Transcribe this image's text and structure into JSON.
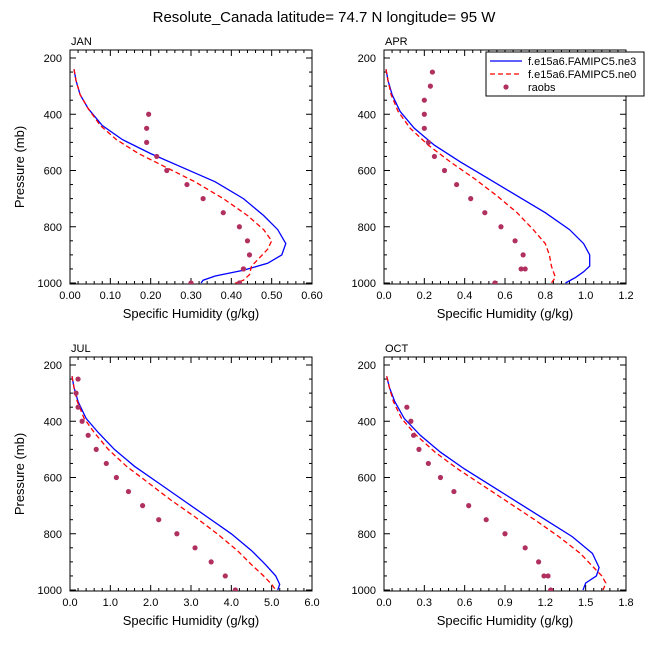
{
  "figure": {
    "title": "Resolute_Canada  latitude= 74.7 N longitude= 95 W"
  },
  "legend": {
    "placement": "top-right of APR panel",
    "entries": [
      {
        "label": "f.e15a6.FAMIPC5.ne3",
        "color": "#0000ff",
        "style": "solid"
      },
      {
        "label": "f.e15a6.FAMIPC5.ne0",
        "color": "#ff0000",
        "style": "dashed"
      },
      {
        "label": "raobs",
        "color": "#b03060",
        "style": "marker"
      }
    ]
  },
  "chart_data": [
    {
      "type": "line",
      "panel": "JAN",
      "title": "JAN",
      "xlabel": "Specific Humidity (g/kg)",
      "ylabel": "Pressure (mb)",
      "xlim": [
        0,
        0.6
      ],
      "ylim": [
        1000,
        200
      ],
      "xticks": [
        "0.00",
        "0.10",
        "0.20",
        "0.30",
        "0.40",
        "0.50",
        "0.60"
      ],
      "xtick_values": [
        0,
        0.1,
        0.2,
        0.3,
        0.4,
        0.5,
        0.6
      ],
      "yticks": [
        "200",
        "400",
        "600",
        "800",
        "1000"
      ],
      "ytick_values": [
        200,
        400,
        600,
        800,
        1000
      ],
      "series": [
        {
          "name": "f.e15a6.FAMIPC5.ne3",
          "color": "#0000ff",
          "dash": false,
          "x": [
            0.01,
            0.015,
            0.025,
            0.045,
            0.08,
            0.13,
            0.2,
            0.28,
            0.36,
            0.43,
            0.48,
            0.515,
            0.535,
            0.525,
            0.49,
            0.43,
            0.36,
            0.33,
            0.325
          ],
          "y": [
            240,
            280,
            330,
            380,
            440,
            490,
            540,
            590,
            640,
            700,
            760,
            810,
            860,
            900,
            930,
            955,
            975,
            990,
            1000
          ]
        },
        {
          "name": "f.e15a6.FAMIPC5.ne0",
          "color": "#ff0000",
          "dash": true,
          "x": [
            0.01,
            0.015,
            0.025,
            0.045,
            0.075,
            0.115,
            0.17,
            0.24,
            0.31,
            0.38,
            0.44,
            0.48,
            0.5,
            0.49,
            0.47,
            0.45,
            0.445,
            0.43,
            0.41
          ],
          "y": [
            240,
            280,
            330,
            380,
            440,
            490,
            540,
            590,
            640,
            700,
            760,
            810,
            850,
            880,
            910,
            940,
            970,
            990,
            1000
          ]
        },
        {
          "name": "raobs",
          "color": "#b03060",
          "marker": true,
          "x": [
            0.195,
            0.19,
            0.19,
            0.215,
            0.24,
            0.29,
            0.33,
            0.38,
            0.42,
            0.44,
            0.445,
            0.43,
            0.42,
            0.43,
            0.3
          ],
          "y": [
            400,
            450,
            500,
            550,
            600,
            650,
            700,
            750,
            800,
            850,
            900,
            950,
            1000,
            950,
            1000
          ]
        }
      ]
    },
    {
      "type": "line",
      "panel": "APR",
      "title": "APR",
      "xlabel": "Specific Humidity (g/kg)",
      "ylabel": "",
      "xlim": [
        0,
        1.2
      ],
      "ylim": [
        1000,
        200
      ],
      "xticks": [
        "0.0",
        "0.2",
        "0.4",
        "0.6",
        "0.8",
        "1.0",
        "1.2"
      ],
      "xtick_values": [
        0,
        0.2,
        0.4,
        0.6,
        0.8,
        1.0,
        1.2
      ],
      "yticks": [
        "200",
        "400",
        "600",
        "800",
        "1000"
      ],
      "ytick_values": [
        200,
        400,
        600,
        800,
        1000
      ],
      "series": [
        {
          "name": "f.e15a6.FAMIPC5.ne3",
          "color": "#0000ff",
          "dash": false,
          "x": [
            0.01,
            0.02,
            0.04,
            0.08,
            0.15,
            0.25,
            0.38,
            0.52,
            0.66,
            0.8,
            0.92,
            0.99,
            1.02,
            1.02,
            0.99,
            0.95,
            0.9
          ],
          "y": [
            240,
            280,
            330,
            390,
            450,
            510,
            570,
            630,
            690,
            750,
            810,
            860,
            900,
            940,
            960,
            980,
            1000
          ]
        },
        {
          "name": "f.e15a6.FAMIPC5.ne0",
          "color": "#ff0000",
          "dash": true,
          "x": [
            0.01,
            0.02,
            0.035,
            0.07,
            0.13,
            0.22,
            0.33,
            0.45,
            0.56,
            0.66,
            0.74,
            0.8,
            0.82,
            0.83,
            0.84,
            0.85,
            0.83
          ],
          "y": [
            240,
            280,
            330,
            390,
            450,
            510,
            570,
            630,
            690,
            750,
            810,
            860,
            900,
            940,
            960,
            980,
            1000
          ]
        },
        {
          "name": "raobs",
          "color": "#b03060",
          "marker": true,
          "x": [
            0.24,
            0.23,
            0.2,
            0.2,
            0.2,
            0.22,
            0.25,
            0.3,
            0.36,
            0.43,
            0.5,
            0.58,
            0.65,
            0.69,
            0.7,
            0.68,
            0.55
          ],
          "y": [
            250,
            300,
            350,
            400,
            450,
            500,
            550,
            600,
            650,
            700,
            750,
            800,
            850,
            900,
            950,
            950,
            1000
          ]
        }
      ]
    },
    {
      "type": "line",
      "panel": "JUL",
      "title": "JUL",
      "xlabel": "Specific Humidity (g/kg)",
      "ylabel": "Pressure (mb)",
      "xlim": [
        0,
        6.0
      ],
      "ylim": [
        1000,
        200
      ],
      "xticks": [
        "0.0",
        "1.0",
        "2.0",
        "3.0",
        "4.0",
        "5.0",
        "6.0"
      ],
      "xtick_values": [
        0,
        1,
        2,
        3,
        4,
        5,
        6
      ],
      "yticks": [
        "200",
        "400",
        "600",
        "800",
        "1000"
      ],
      "ytick_values": [
        200,
        400,
        600,
        800,
        1000
      ],
      "series": [
        {
          "name": "f.e15a6.FAMIPC5.ne3",
          "color": "#0000ff",
          "dash": false,
          "x": [
            0.05,
            0.1,
            0.2,
            0.4,
            0.7,
            1.1,
            1.6,
            2.2,
            2.8,
            3.4,
            4.0,
            4.5,
            4.85,
            5.1,
            5.2,
            5.15
          ],
          "y": [
            240,
            280,
            330,
            390,
            440,
            500,
            560,
            620,
            680,
            740,
            800,
            860,
            910,
            950,
            980,
            1000
          ]
        },
        {
          "name": "f.e15a6.FAMIPC5.ne0",
          "color": "#ff0000",
          "dash": true,
          "x": [
            0.05,
            0.1,
            0.18,
            0.35,
            0.6,
            0.95,
            1.4,
            1.95,
            2.5,
            3.1,
            3.65,
            4.15,
            4.5,
            4.8,
            5.0,
            5.1
          ],
          "y": [
            240,
            280,
            330,
            390,
            440,
            500,
            560,
            620,
            680,
            740,
            800,
            860,
            910,
            950,
            980,
            1000
          ]
        },
        {
          "name": "raobs",
          "color": "#b03060",
          "marker": true,
          "x": [
            0.2,
            0.15,
            0.2,
            0.3,
            0.45,
            0.65,
            0.9,
            1.15,
            1.45,
            1.8,
            2.2,
            2.65,
            3.1,
            3.5,
            3.85,
            4.1
          ],
          "y": [
            250,
            300,
            350,
            400,
            450,
            500,
            550,
            600,
            650,
            700,
            750,
            800,
            850,
            900,
            950,
            1000
          ]
        }
      ]
    },
    {
      "type": "line",
      "panel": "OCT",
      "title": "OCT",
      "xlabel": "Specific Humidity (g/kg)",
      "ylabel": "",
      "xlim": [
        0,
        1.8
      ],
      "ylim": [
        1000,
        200
      ],
      "xticks": [
        "0.0",
        "0.3",
        "0.6",
        "0.9",
        "1.2",
        "1.5",
        "1.8"
      ],
      "xtick_values": [
        0,
        0.3,
        0.6,
        0.9,
        1.2,
        1.5,
        1.8
      ],
      "yticks": [
        "200",
        "400",
        "600",
        "800",
        "1000"
      ],
      "ytick_values": [
        200,
        400,
        600,
        800,
        1000
      ],
      "series": [
        {
          "name": "f.e15a6.FAMIPC5.ne3",
          "color": "#0000ff",
          "dash": false,
          "x": [
            0.02,
            0.04,
            0.08,
            0.15,
            0.27,
            0.42,
            0.6,
            0.8,
            1.0,
            1.2,
            1.4,
            1.55,
            1.6,
            1.58,
            1.5,
            1.48
          ],
          "y": [
            240,
            280,
            330,
            390,
            450,
            510,
            570,
            630,
            690,
            750,
            810,
            870,
            920,
            950,
            975,
            1000
          ]
        },
        {
          "name": "f.e15a6.FAMIPC5.ne0",
          "color": "#ff0000",
          "dash": true,
          "x": [
            0.02,
            0.04,
            0.07,
            0.13,
            0.24,
            0.38,
            0.55,
            0.74,
            0.93,
            1.12,
            1.3,
            1.46,
            1.56,
            1.62,
            1.65,
            1.63
          ],
          "y": [
            240,
            280,
            330,
            390,
            450,
            510,
            570,
            630,
            690,
            750,
            810,
            870,
            920,
            950,
            975,
            1000
          ]
        },
        {
          "name": "raobs",
          "color": "#b03060",
          "marker": true,
          "x": [
            0.17,
            0.2,
            0.22,
            0.26,
            0.33,
            0.42,
            0.52,
            0.63,
            0.76,
            0.9,
            1.05,
            1.15,
            1.22,
            1.24,
            1.19
          ],
          "y": [
            350,
            400,
            450,
            500,
            550,
            600,
            650,
            700,
            750,
            800,
            850,
            900,
            950,
            1000,
            950
          ]
        }
      ]
    }
  ]
}
